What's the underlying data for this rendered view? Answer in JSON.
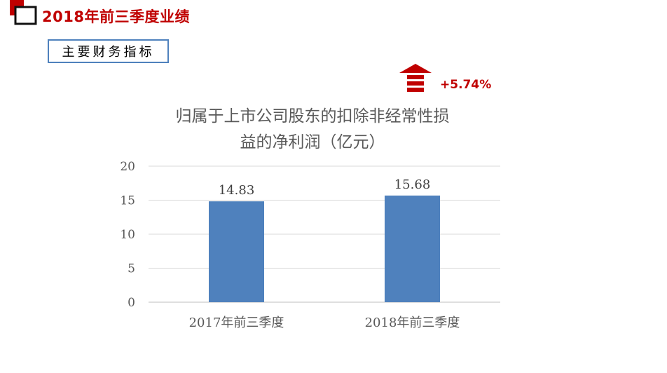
{
  "page": {
    "title": "2018年前三季度业绩",
    "section_label": "主要财务指标",
    "growth": {
      "value": "+5.74%",
      "icon": "up-arrow-icon",
      "color": "#c00000"
    }
  },
  "colors": {
    "accent": "#c00000",
    "bar": "#4f81bd",
    "box_border": "#4f81bd"
  },
  "chart_data": {
    "type": "bar",
    "title_lines": [
      "归属于上市公司股东的扣除非经常性损",
      "益的净利润（亿元）"
    ],
    "categories": [
      "2017年前三季度",
      "2018年前三季度"
    ],
    "values": [
      14.83,
      15.68
    ],
    "value_labels": [
      "14.83",
      "15.68"
    ],
    "ylim": [
      0,
      20
    ],
    "yticks": [
      0,
      5,
      10,
      15,
      20
    ],
    "ytick_labels": [
      "0",
      "5",
      "10",
      "15",
      "20"
    ],
    "grid": true,
    "legend": "none",
    "bar_color": "#4f81bd"
  }
}
